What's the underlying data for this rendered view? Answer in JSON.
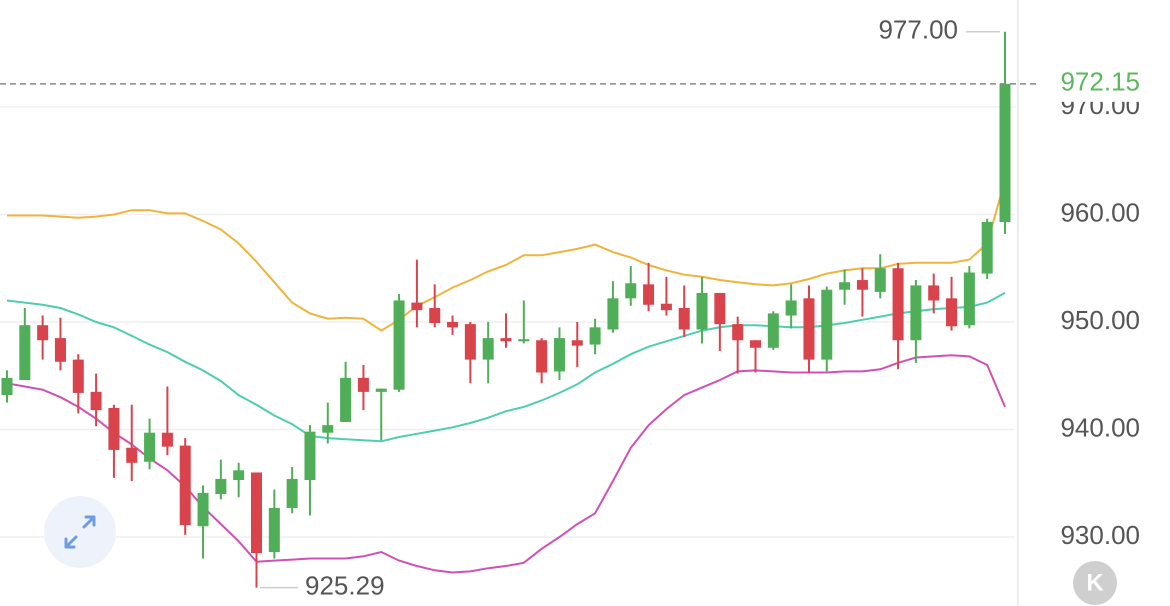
{
  "chart_data": {
    "type": "candlestick",
    "open": [
      943.2,
      944.6,
      949.7,
      948.5,
      946.5,
      943.5,
      942.0,
      938.3,
      937.0,
      939.7,
      938.5,
      931.0,
      934.0,
      935.3,
      936.0,
      928.6,
      932.7,
      935.3,
      939.7,
      940.7,
      944.8,
      943.5,
      943.7,
      951.8,
      951.3,
      950.0,
      949.8,
      946.5,
      948.5,
      948.2,
      948.3,
      945.4,
      948.3,
      947.9,
      949.3,
      952.2,
      953.5,
      951.7,
      951.3,
      949.3,
      952.7,
      949.8,
      948.3,
      947.6,
      950.6,
      952.2,
      946.5,
      953.0,
      953.9,
      952.8,
      955.0,
      948.3,
      953.4,
      952.2,
      949.7,
      954.5,
      959.3
    ],
    "high": [
      945.5,
      951.3,
      950.6,
      950.4,
      947.0,
      945.2,
      942.3,
      942.3,
      941.0,
      944.0,
      939.2,
      934.8,
      937.2,
      936.9,
      936.0,
      934.4,
      936.5,
      940.4,
      942.5,
      946.3,
      946.0,
      943.8,
      952.6,
      955.8,
      953.5,
      950.6,
      950.0,
      950.0,
      950.8,
      952.0,
      948.5,
      949.5,
      950.0,
      950.3,
      953.8,
      955.2,
      955.5,
      954.2,
      953.4,
      954.2,
      952.7,
      950.5,
      948.3,
      951.0,
      953.5,
      953.4,
      953.3,
      954.9,
      955.0,
      956.3,
      955.5,
      953.9,
      954.5,
      954.2,
      955.2,
      959.6,
      977
    ],
    "low": [
      942.5,
      944.6,
      946.5,
      945.5,
      941.5,
      940.3,
      935.5,
      935.2,
      936.3,
      937.6,
      930.2,
      928.0,
      933.5,
      933.7,
      925.29,
      928.0,
      932.2,
      932.0,
      938.7,
      940.7,
      941.8,
      939.0,
      943.5,
      949.5,
      949.5,
      948.8,
      944.3,
      944.3,
      947.6,
      948.0,
      944.3,
      944.6,
      945.8,
      947.0,
      949.0,
      951.5,
      951.0,
      950.6,
      948.6,
      948.0,
      947.3,
      945.2,
      945.3,
      947.4,
      949.4,
      945.3,
      945.4,
      951.6,
      950.5,
      952.2,
      945.6,
      946.2,
      950.8,
      949.2,
      949.4,
      954.0,
      958.2
    ],
    "close": [
      944.8,
      949.7,
      948.3,
      946.3,
      943.4,
      941.8,
      938.1,
      936.9,
      939.7,
      938.4,
      931.1,
      934.1,
      935.4,
      936.2,
      928.5,
      932.7,
      935.4,
      939.8,
      940.4,
      944.8,
      943.5,
      943.8,
      952.0,
      951.1,
      949.9,
      949.5,
      946.5,
      948.5,
      948.2,
      948.4,
      945.3,
      948.5,
      947.8,
      949.5,
      952.2,
      953.6,
      951.6,
      951.1,
      949.3,
      952.7,
      949.8,
      948.3,
      947.6,
      950.8,
      952.0,
      946.5,
      953.0,
      953.7,
      953.0,
      955.0,
      948.3,
      953.4,
      952.0,
      949.6,
      954.6,
      959.3,
      972.15
    ],
    "up_color": "#4fae57",
    "down_color": "#d8434c",
    "series": [
      {
        "color": "#f0b43c",
        "values": [
          959.9,
          959.9,
          959.9,
          959.8,
          959.7,
          959.8,
          960.0,
          960.4,
          960.4,
          960.1,
          960.1,
          959.4,
          958.6,
          957.3,
          955.6,
          953.7,
          951.8,
          950.8,
          950.3,
          950.4,
          950.3,
          949.2,
          950.2,
          951.5,
          952.3,
          953.2,
          953.9,
          954.7,
          955.3,
          956.2,
          956.2,
          956.5,
          956.8,
          957.2,
          956.5,
          956.0,
          955.3,
          954.8,
          954.4,
          954.2,
          953.9,
          953.7,
          953.5,
          953.4,
          953.6,
          954.0,
          954.5,
          954.8,
          955.0,
          955.0,
          955.4,
          955.5,
          955.5,
          955.5,
          955.8,
          957.3,
          963.2
        ]
      },
      {
        "color": "#4ecdb0",
        "values": [
          952.0,
          951.8,
          951.6,
          951.3,
          950.7,
          950.0,
          949.5,
          948.7,
          947.9,
          947.2,
          946.3,
          945.5,
          944.5,
          943.2,
          942.3,
          941.3,
          940.5,
          939.4,
          939.2,
          939.1,
          939.0,
          938.9,
          939.3,
          939.6,
          939.9,
          940.2,
          940.6,
          941.1,
          941.7,
          942.1,
          942.7,
          943.4,
          944.2,
          945.3,
          946.1,
          947.0,
          947.7,
          948.2,
          948.7,
          949.2,
          949.5,
          949.7,
          949.7,
          949.6,
          949.5,
          949.5,
          949.7,
          949.9,
          950.2,
          950.5,
          950.8,
          951.0,
          951.2,
          951.3,
          951.4,
          951.8,
          952.7
        ]
      },
      {
        "color": "#d050b5",
        "values": [
          944.3,
          944.0,
          943.7,
          943.0,
          942.1,
          941.0,
          939.7,
          938.6,
          937.3,
          936.2,
          934.7,
          932.8,
          931.2,
          929.6,
          927.7,
          927.8,
          927.9,
          928.0,
          928.0,
          928.0,
          928.2,
          928.6,
          927.8,
          927.3,
          926.9,
          926.7,
          926.8,
          927.1,
          927.3,
          927.6,
          928.9,
          930.0,
          931.2,
          932.2,
          935.2,
          938.3,
          940.4,
          941.9,
          943.2,
          943.9,
          944.6,
          945.4,
          945.5,
          945.4,
          945.3,
          945.3,
          945.3,
          945.4,
          945.4,
          945.6,
          946.2,
          946.7,
          946.8,
          946.9,
          946.8,
          946.0,
          942.1
        ]
      }
    ],
    "ylim": [
      923.58,
      979.95
    ],
    "yticks": [
      {
        "value": 930,
        "label": "930.00"
      },
      {
        "value": 940,
        "label": "940.00"
      },
      {
        "value": 950,
        "label": "950.00"
      },
      {
        "value": 960,
        "label": "960.00"
      },
      {
        "value": 970,
        "label": "970.00"
      }
    ],
    "grid": true,
    "high_label": {
      "value": 977,
      "label": "977.00"
    },
    "low_label": {
      "value": 925.29,
      "label": "925.29"
    },
    "last_price": {
      "value": 972.15,
      "label": "972.15",
      "color": "#5cb85c"
    }
  },
  "controls": {
    "kline_button": "K"
  }
}
